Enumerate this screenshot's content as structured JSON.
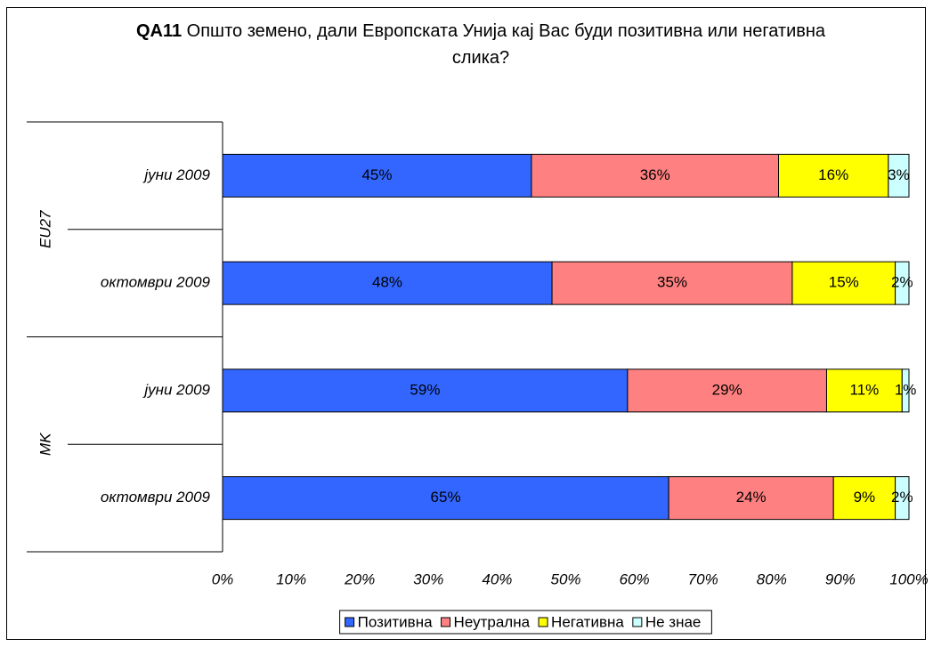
{
  "chart_data": {
    "type": "stacked_barh",
    "title": {
      "code": "QA11",
      "text": "Општо земено, дали Европската Унија кај Вас буди позитивна или негативна слика?"
    },
    "groups": [
      {
        "name": "EU27",
        "categories": [
          "јуни 2009",
          "октомври 2009"
        ]
      },
      {
        "name": "MK",
        "categories": [
          "јуни 2009",
          "октомври 2009"
        ]
      }
    ],
    "series": [
      {
        "name": "Позитивна",
        "color": "#3366ff",
        "values": [
          45,
          48,
          59,
          65
        ],
        "value_labels": [
          "45%",
          "48%",
          "59%",
          "65%"
        ]
      },
      {
        "name": "Неутрална",
        "color": "#ff8080",
        "values": [
          36,
          35,
          29,
          24
        ],
        "value_labels": [
          "36%",
          "35%",
          "29%",
          "24%"
        ]
      },
      {
        "name": "Негативна",
        "color": "#ffff00",
        "values": [
          16,
          15,
          11,
          9
        ],
        "value_labels": [
          "16%",
          "15%",
          "11%",
          "9%"
        ]
      },
      {
        "name": "Не знае",
        "color": "#ccffff",
        "values": [
          3,
          2,
          1,
          2
        ],
        "value_labels": [
          "3%",
          "2%",
          "1%",
          "2%"
        ]
      }
    ],
    "xlim": [
      0,
      100
    ],
    "xticks": [
      {
        "value": 0,
        "label": "0%"
      },
      {
        "value": 10,
        "label": "10%"
      },
      {
        "value": 20,
        "label": "20%"
      },
      {
        "value": 30,
        "label": "30%"
      },
      {
        "value": 40,
        "label": "40%"
      },
      {
        "value": 50,
        "label": "50%"
      },
      {
        "value": 60,
        "label": "60%"
      },
      {
        "value": 70,
        "label": "70%"
      },
      {
        "value": 80,
        "label": "80%"
      },
      {
        "value": 90,
        "label": "90%"
      },
      {
        "value": 100,
        "label": "100%"
      }
    ],
    "legend": "bottom"
  }
}
